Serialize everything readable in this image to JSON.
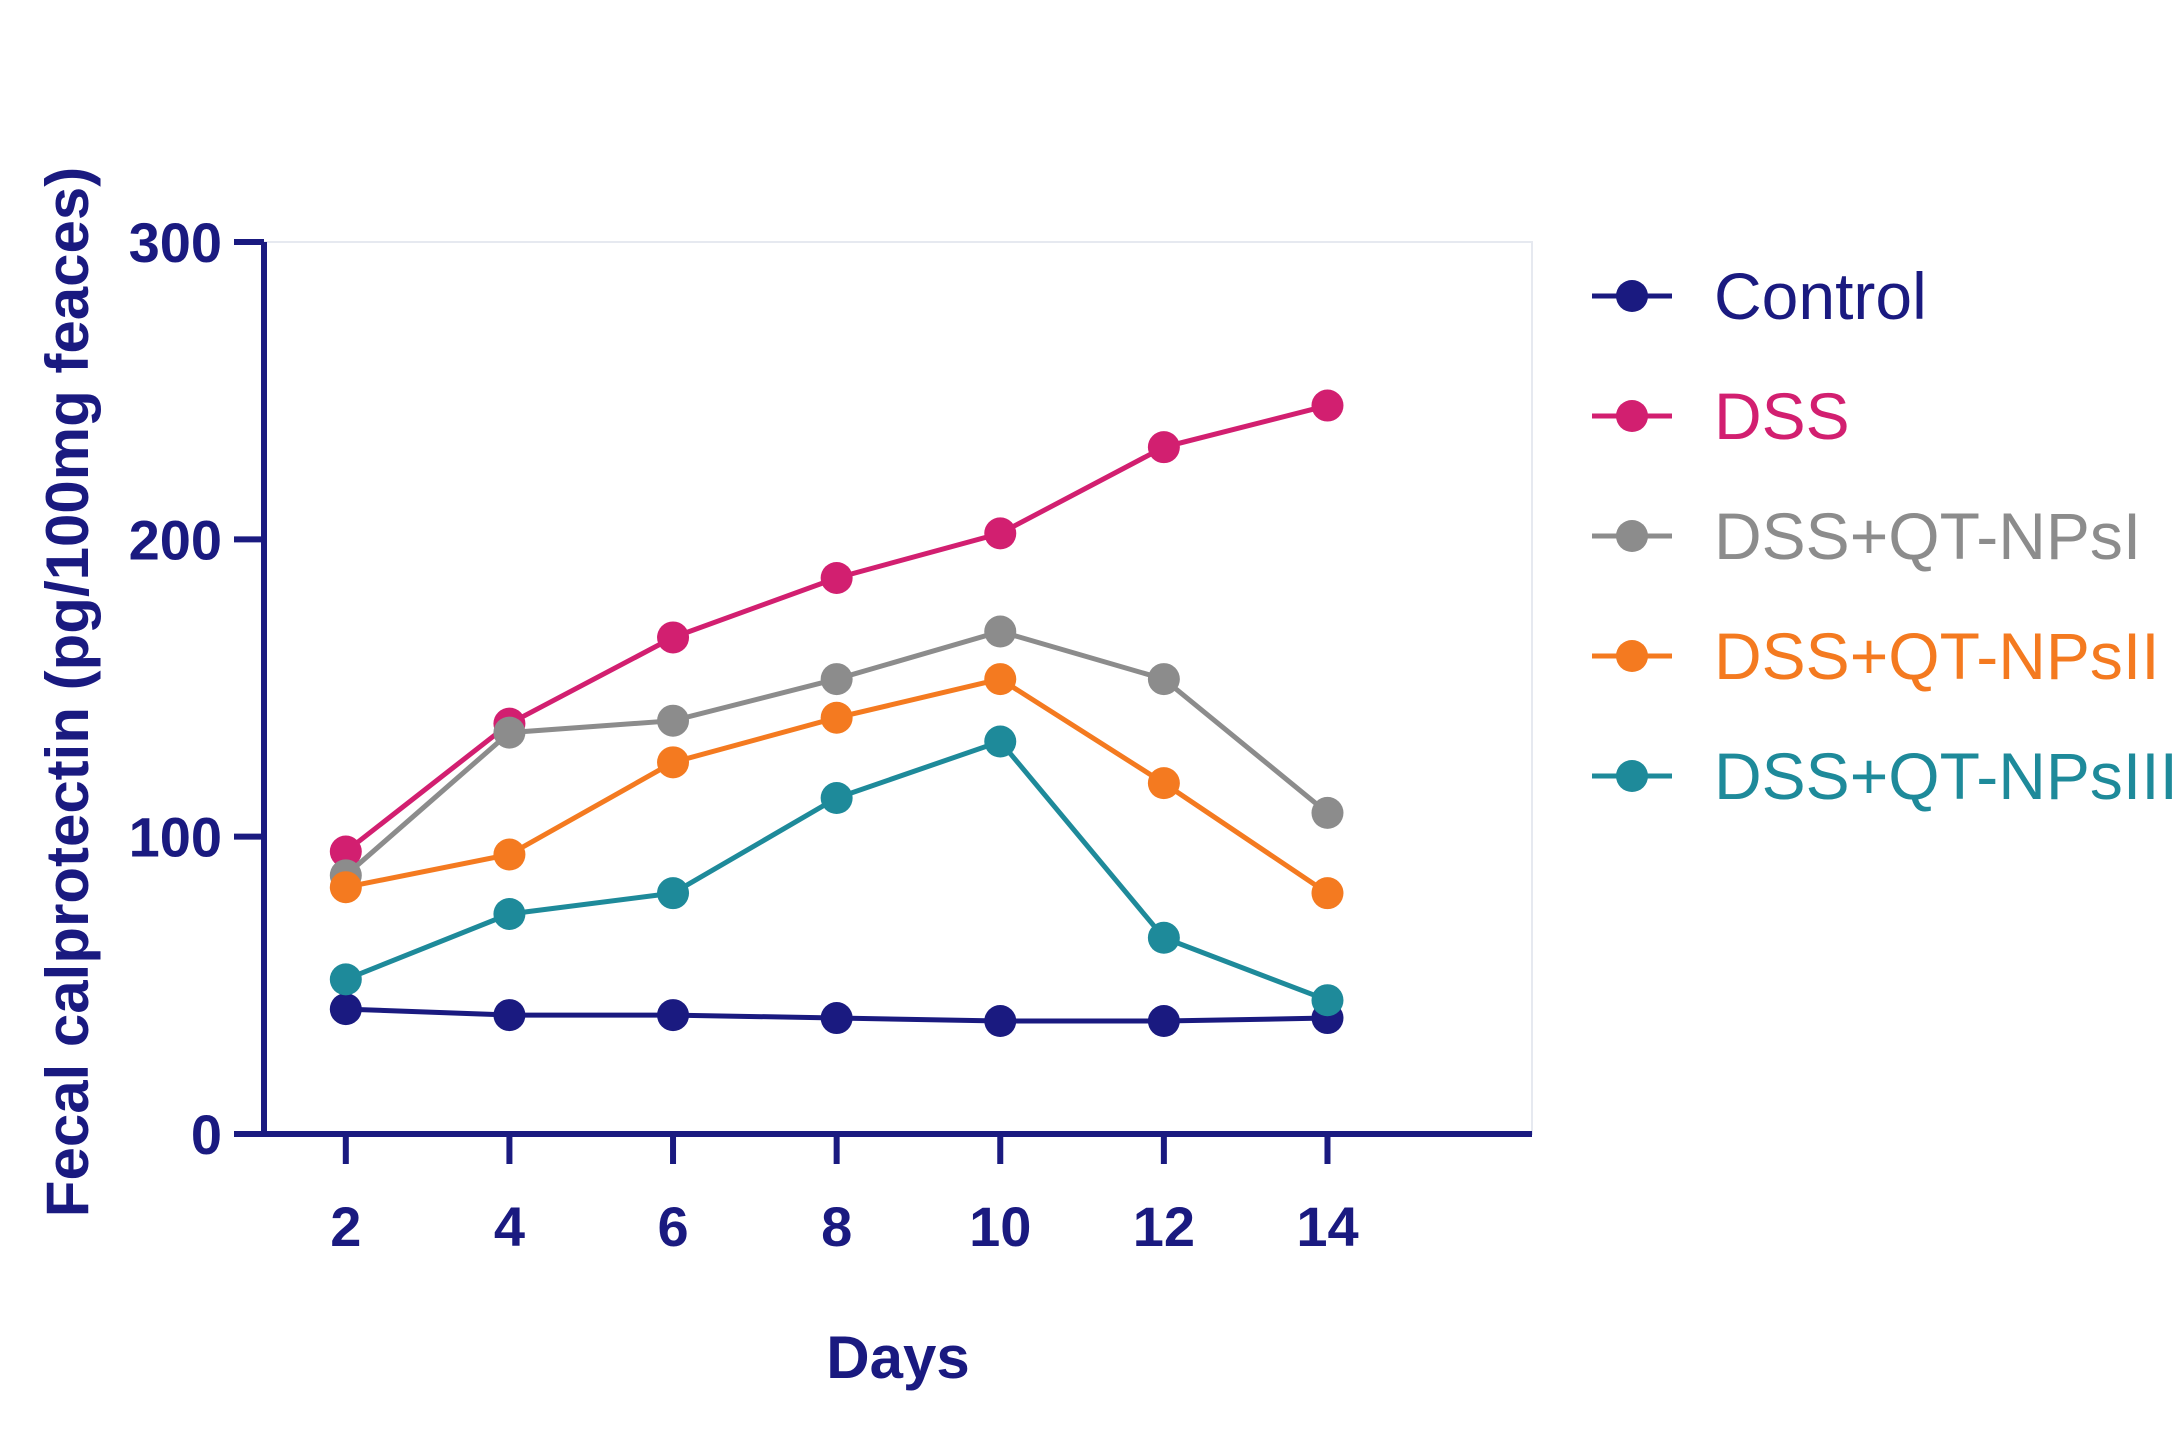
{
  "chart_data": {
    "type": "line",
    "title": "",
    "xlabel": "Days",
    "ylabel": "Fecal calprotectin  (pg/100mg feaces)",
    "x": [
      2,
      4,
      6,
      8,
      10,
      12,
      14
    ],
    "x_ticks": [
      "2",
      "4",
      "6",
      "8",
      "10",
      "12",
      "14"
    ],
    "y_ticks": [
      "0",
      "100",
      "200",
      "300"
    ],
    "ylim": [
      0,
      300
    ],
    "xlim": [
      1,
      16.5
    ],
    "grid": false,
    "legend_position": "right",
    "axis_color": "#1a1a80",
    "series": [
      {
        "name": "Control",
        "color": "#1a1a80",
        "values": [
          42,
          40,
          40,
          39,
          38,
          38,
          39
        ]
      },
      {
        "name": "DSS",
        "color": "#d21f70",
        "values": [
          95,
          138,
          167,
          187,
          202,
          231,
          245
        ]
      },
      {
        "name": "DSS+QT-NPsI",
        "color": "#8c8c8c",
        "values": [
          87,
          135,
          139,
          153,
          169,
          153,
          108
        ]
      },
      {
        "name": "DSS+QT-NPsII",
        "color": "#f47a20",
        "values": [
          83,
          94,
          125,
          140,
          153,
          118,
          81
        ]
      },
      {
        "name": "DSS+QT-NPsIII",
        "color": "#1e8a9a",
        "values": [
          52,
          74,
          81,
          113,
          132,
          66,
          45
        ]
      }
    ]
  }
}
